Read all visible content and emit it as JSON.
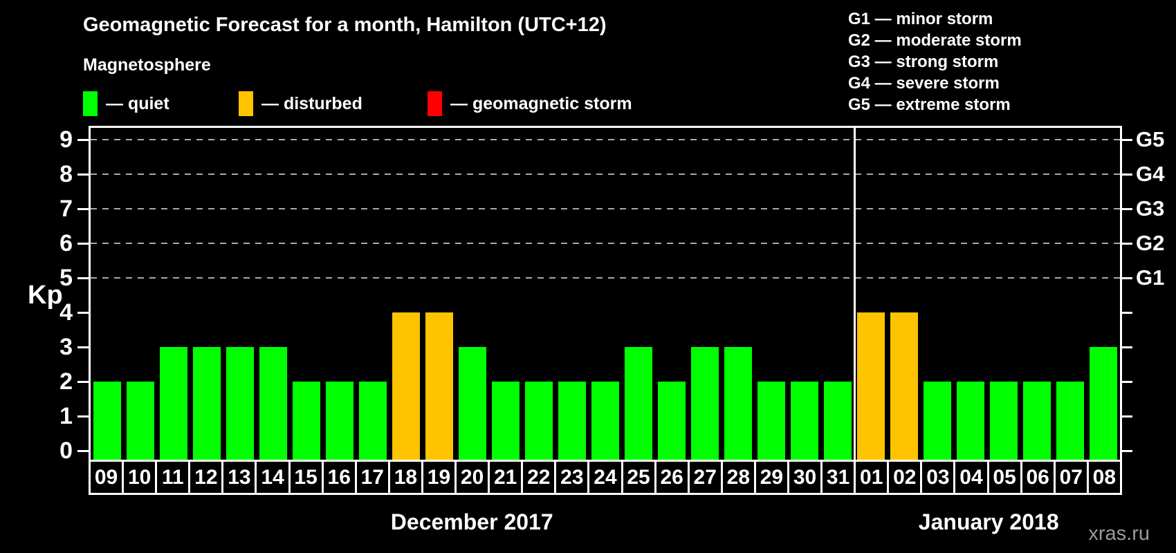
{
  "page": {
    "title": "Geomagnetic Forecast for a month, Hamilton (UTC+12)",
    "watermark": "xras.ru"
  },
  "colors": {
    "background": "#000000",
    "text": "#ffffff",
    "grid": "#aaaaaa",
    "axis": "#ffffff",
    "watermark": "#9a9a9a"
  },
  "legend": {
    "heading": "Magnetosphere",
    "items": [
      {
        "name": "quiet",
        "label": "— quiet",
        "color": "#00ff00"
      },
      {
        "name": "disturbed",
        "label": "— disturbed",
        "color": "#ffc400"
      },
      {
        "name": "storm",
        "label": "— geomagnetic storm",
        "color": "#ff0000"
      }
    ]
  },
  "storm_scale_legend": {
    "lines": [
      "G1 — minor storm",
      "G2 — moderate storm",
      "G3 — strong storm",
      "G4 — severe storm",
      "G5 — extreme storm"
    ]
  },
  "chart_data": {
    "type": "bar",
    "title": "Geomagnetic Forecast for a month, Hamilton (UTC+12)",
    "ylabel": "Kp",
    "ylim": [
      0,
      9.5
    ],
    "yticks": [
      0,
      1,
      2,
      3,
      4,
      5,
      6,
      7,
      8,
      9
    ],
    "gridlines_at_kp": [
      5,
      6,
      7,
      8,
      9
    ],
    "legend_position": "top",
    "right_axis_labels": [
      {
        "text": "G1",
        "kp": 5
      },
      {
        "text": "G2",
        "kp": 6
      },
      {
        "text": "G3",
        "kp": 7
      },
      {
        "text": "G4",
        "kp": 8
      },
      {
        "text": "G5",
        "kp": 9
      }
    ],
    "months": [
      {
        "label": "December 2017",
        "day_count": 23
      },
      {
        "label": "January 2018",
        "day_count": 8
      }
    ],
    "status_colors": {
      "quiet": "#00ff00",
      "disturbed": "#ffc400",
      "storm": "#ff0000"
    },
    "bars": [
      {
        "day": "09",
        "kp": 2,
        "status": "quiet"
      },
      {
        "day": "10",
        "kp": 2,
        "status": "quiet"
      },
      {
        "day": "11",
        "kp": 3,
        "status": "quiet"
      },
      {
        "day": "12",
        "kp": 3,
        "status": "quiet"
      },
      {
        "day": "13",
        "kp": 3,
        "status": "quiet"
      },
      {
        "day": "14",
        "kp": 3,
        "status": "quiet"
      },
      {
        "day": "15",
        "kp": 2,
        "status": "quiet"
      },
      {
        "day": "16",
        "kp": 2,
        "status": "quiet"
      },
      {
        "day": "17",
        "kp": 2,
        "status": "quiet"
      },
      {
        "day": "18",
        "kp": 4,
        "status": "disturbed"
      },
      {
        "day": "19",
        "kp": 4,
        "status": "disturbed"
      },
      {
        "day": "20",
        "kp": 3,
        "status": "quiet"
      },
      {
        "day": "21",
        "kp": 2,
        "status": "quiet"
      },
      {
        "day": "22",
        "kp": 2,
        "status": "quiet"
      },
      {
        "day": "23",
        "kp": 2,
        "status": "quiet"
      },
      {
        "day": "24",
        "kp": 2,
        "status": "quiet"
      },
      {
        "day": "25",
        "kp": 3,
        "status": "quiet"
      },
      {
        "day": "26",
        "kp": 2,
        "status": "quiet"
      },
      {
        "day": "27",
        "kp": 3,
        "status": "quiet"
      },
      {
        "day": "28",
        "kp": 3,
        "status": "quiet"
      },
      {
        "day": "29",
        "kp": 2,
        "status": "quiet"
      },
      {
        "day": "30",
        "kp": 2,
        "status": "quiet"
      },
      {
        "day": "31",
        "kp": 2,
        "status": "quiet"
      },
      {
        "day": "01",
        "kp": 4,
        "status": "disturbed"
      },
      {
        "day": "02",
        "kp": 4,
        "status": "disturbed"
      },
      {
        "day": "03",
        "kp": 2,
        "status": "quiet"
      },
      {
        "day": "04",
        "kp": 2,
        "status": "quiet"
      },
      {
        "day": "05",
        "kp": 2,
        "status": "quiet"
      },
      {
        "day": "06",
        "kp": 2,
        "status": "quiet"
      },
      {
        "day": "07",
        "kp": 2,
        "status": "quiet"
      },
      {
        "day": "08",
        "kp": 3,
        "status": "quiet"
      }
    ]
  }
}
